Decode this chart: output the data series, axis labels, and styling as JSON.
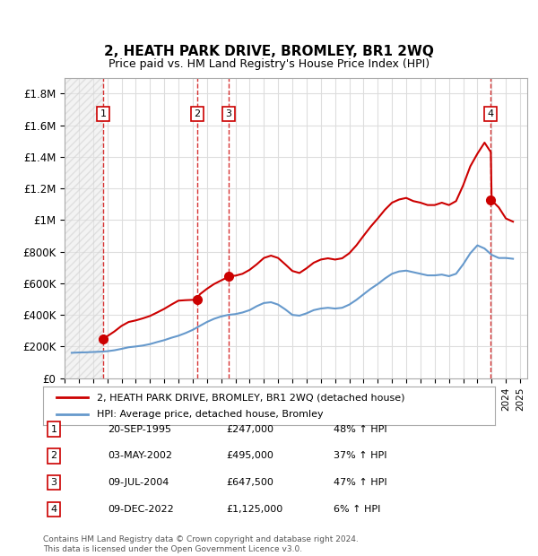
{
  "title": "2, HEATH PARK DRIVE, BROMLEY, BR1 2WQ",
  "subtitle": "Price paid vs. HM Land Registry's House Price Index (HPI)",
  "footer": "Contains HM Land Registry data © Crown copyright and database right 2024.\nThis data is licensed under the Open Government Licence v3.0.",
  "legend_line1": "2, HEATH PARK DRIVE, BROMLEY, BR1 2WQ (detached house)",
  "legend_line2": "HPI: Average price, detached house, Bromley",
  "transactions": [
    {
      "num": 1,
      "date": "20-SEP-1995",
      "price": 247000,
      "pct": "48%",
      "year": 1995.72
    },
    {
      "num": 2,
      "date": "03-MAY-2002",
      "price": 495000,
      "pct": "37%",
      "year": 2002.33
    },
    {
      "num": 3,
      "date": "09-JUL-2004",
      "price": 647500,
      "pct": "47%",
      "year": 2004.52
    },
    {
      "num": 4,
      "date": "09-DEC-2022",
      "price": 1125000,
      "pct": "6%",
      "year": 2022.94
    }
  ],
  "ylim": [
    0,
    1900000
  ],
  "yticks": [
    0,
    200000,
    400000,
    600000,
    800000,
    1000000,
    1200000,
    1400000,
    1600000,
    1800000
  ],
  "ytick_labels": [
    "£0",
    "£200K",
    "£400K",
    "£600K",
    "£800K",
    "£1M",
    "£1.2M",
    "£1.4M",
    "£1.6M",
    "£1.8M"
  ],
  "xlim_start": 1993.0,
  "xlim_end": 2025.5,
  "hpi_color": "#6699cc",
  "price_color": "#cc0000",
  "transaction_color": "#cc0000",
  "hatch_color": "#cccccc",
  "grid_color": "#dddddd",
  "bg_color": "#ffffff",
  "hpi_data": {
    "years": [
      1993.5,
      1994.0,
      1994.5,
      1995.0,
      1995.5,
      1996.0,
      1996.5,
      1997.0,
      1997.5,
      1998.0,
      1998.5,
      1999.0,
      1999.5,
      2000.0,
      2000.5,
      2001.0,
      2001.5,
      2002.0,
      2002.5,
      2003.0,
      2003.5,
      2004.0,
      2004.5,
      2005.0,
      2005.5,
      2006.0,
      2006.5,
      2007.0,
      2007.5,
      2008.0,
      2008.5,
      2009.0,
      2009.5,
      2010.0,
      2010.5,
      2011.0,
      2011.5,
      2012.0,
      2012.5,
      2013.0,
      2013.5,
      2014.0,
      2014.5,
      2015.0,
      2015.5,
      2016.0,
      2016.5,
      2017.0,
      2017.5,
      2018.0,
      2018.5,
      2019.0,
      2019.5,
      2020.0,
      2020.5,
      2021.0,
      2021.5,
      2022.0,
      2022.5,
      2023.0,
      2023.5,
      2024.0,
      2024.5
    ],
    "values": [
      160000,
      162000,
      163000,
      165000,
      167000,
      170000,
      176000,
      185000,
      195000,
      200000,
      206000,
      215000,
      228000,
      240000,
      255000,
      268000,
      285000,
      305000,
      330000,
      355000,
      375000,
      390000,
      400000,
      405000,
      415000,
      430000,
      455000,
      475000,
      480000,
      465000,
      435000,
      400000,
      395000,
      410000,
      430000,
      440000,
      445000,
      440000,
      445000,
      465000,
      495000,
      530000,
      565000,
      595000,
      630000,
      660000,
      675000,
      680000,
      670000,
      660000,
      650000,
      650000,
      655000,
      645000,
      660000,
      720000,
      790000,
      840000,
      820000,
      780000,
      760000,
      760000,
      755000
    ]
  },
  "price_line_data": {
    "years": [
      1993.5,
      1994.0,
      1994.5,
      1995.0,
      1995.5,
      1995.72,
      1996.0,
      1996.5,
      1997.0,
      1997.5,
      1998.0,
      1998.5,
      1999.0,
      1999.5,
      2000.0,
      2000.5,
      2001.0,
      2001.5,
      2002.0,
      2002.33,
      2002.5,
      2003.0,
      2003.5,
      2004.0,
      2004.5,
      2004.52,
      2005.0,
      2005.5,
      2006.0,
      2006.5,
      2007.0,
      2007.5,
      2008.0,
      2008.5,
      2009.0,
      2009.5,
      2010.0,
      2010.5,
      2011.0,
      2011.5,
      2012.0,
      2012.5,
      2013.0,
      2013.5,
      2014.0,
      2014.5,
      2015.0,
      2015.5,
      2016.0,
      2016.5,
      2017.0,
      2017.5,
      2018.0,
      2018.5,
      2019.0,
      2019.5,
      2020.0,
      2020.5,
      2021.0,
      2021.5,
      2022.0,
      2022.5,
      2022.94,
      2023.0,
      2023.5,
      2024.0,
      2024.5
    ],
    "values": [
      null,
      null,
      null,
      null,
      null,
      247000,
      265000,
      295000,
      330000,
      355000,
      365000,
      378000,
      393000,
      415000,
      438000,
      465000,
      490000,
      493000,
      495000,
      495000,
      530000,
      565000,
      595000,
      618000,
      640000,
      647500,
      648000,
      660000,
      685000,
      720000,
      760000,
      775000,
      760000,
      720000,
      678000,
      665000,
      695000,
      730000,
      750000,
      758000,
      750000,
      758000,
      790000,
      840000,
      900000,
      958000,
      1010000,
      1065000,
      1110000,
      1130000,
      1140000,
      1120000,
      1110000,
      1095000,
      1095000,
      1110000,
      1095000,
      1120000,
      1220000,
      1340000,
      1420000,
      1490000,
      1430000,
      1125000,
      1080000,
      1010000,
      990000,
      975000
    ]
  }
}
